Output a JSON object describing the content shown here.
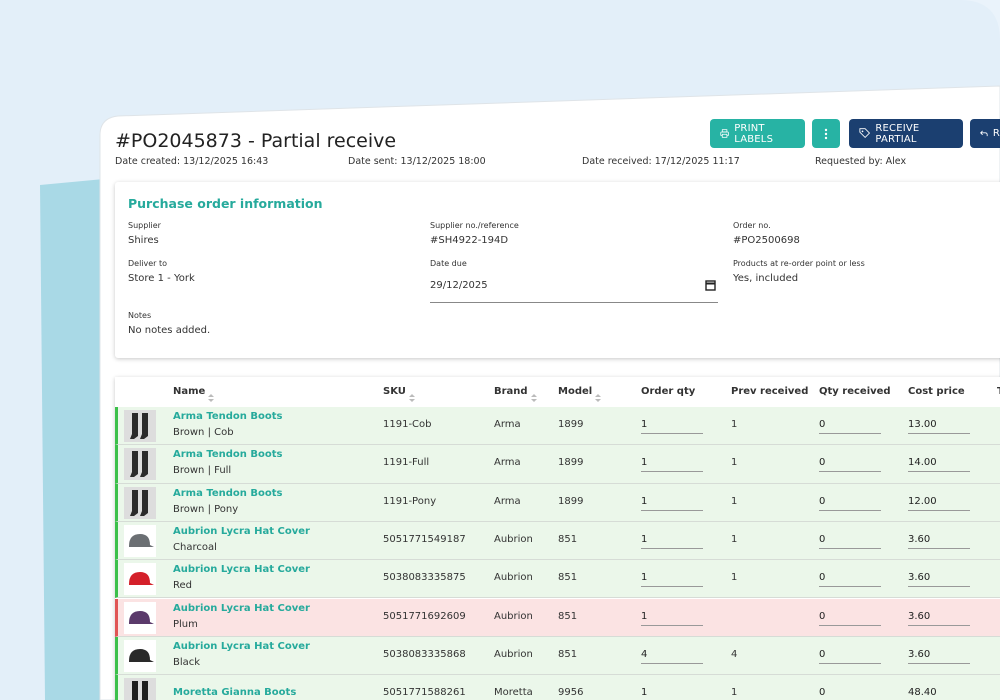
{
  "header": {
    "title": "#PO2045873 - Partial receive",
    "dates": [
      "Date created: 13/12/2025 16:43",
      "Date sent: 13/12/2025 18:00",
      "Date received: 17/12/2025 11:17",
      "Requested by: Alex"
    ]
  },
  "buttons": [
    "PRINT LABELS",
    "RECEIVE PARTIAL",
    "R"
  ],
  "info": {
    "title": "Purchase order information",
    "fields": [
      {
        "label": "Supplier",
        "value": "Shires"
      },
      {
        "label": "Supplier no./reference",
        "value": "#SH4922-194D"
      },
      {
        "label": "Order no.",
        "value": "#PO2500698"
      },
      {
        "label": "Deliver to",
        "value": "Store 1 - York"
      },
      {
        "label": "Date due",
        "value": "29/12/2025"
      },
      {
        "label": "Products at re-order point or less",
        "value": "Yes, included"
      },
      {
        "label": "Notes",
        "value": "No notes added."
      }
    ]
  },
  "table": {
    "columns": [
      {
        "label": "Name",
        "sortable": true
      },
      {
        "label": "SKU",
        "sortable": true
      },
      {
        "label": "Brand",
        "sortable": true
      },
      {
        "label": "Model",
        "sortable": true
      },
      {
        "label": "Order qty",
        "sortable": false
      },
      {
        "label": "Prev received",
        "sortable": false
      },
      {
        "label": "Qty received",
        "sortable": false
      },
      {
        "label": "Cost price",
        "sortable": false
      },
      {
        "label": "T",
        "sortable": false
      }
    ],
    "rows": [
      {
        "name": "Arma Tendon Boots",
        "variant": "Brown | Cob",
        "sku": "1191-Cob",
        "brand": "Arma",
        "model": "1899",
        "order_qty": 1,
        "prev_received": 1,
        "qty_received": 0,
        "cost_price": "13.00",
        "color": "#ebf7ea",
        "thumb": "boots",
        "thumb_color": "#2b2b2b"
      },
      {
        "name": "Arma Tendon Boots",
        "variant": "Brown | Full",
        "sku": "1191-Full",
        "brand": "Arma",
        "model": "1899",
        "order_qty": 1,
        "prev_received": 1,
        "qty_received": 0,
        "cost_price": "14.00",
        "color": "#ebf7ea",
        "thumb": "boots",
        "thumb_color": "#2b2b2b"
      },
      {
        "name": "Arma Tendon Boots",
        "variant": "Brown | Pony",
        "sku": "1191-Pony",
        "brand": "Arma",
        "model": "1899",
        "order_qty": 1,
        "prev_received": 1,
        "qty_received": 0,
        "cost_price": "12.00",
        "color": "#ebf7ea",
        "thumb": "boots",
        "thumb_color": "#2b2b2b"
      },
      {
        "name": "Aubrion Lycra Hat Cover",
        "variant": "Charcoal",
        "sku": "5051771549187",
        "brand": "Aubrion",
        "model": "851",
        "order_qty": 1,
        "prev_received": 1,
        "qty_received": 0,
        "cost_price": "3.60",
        "color": "#ebf7ea",
        "thumb": "hat",
        "thumb_color": "#6b6f73"
      },
      {
        "name": "Aubrion Lycra Hat Cover",
        "variant": "Red",
        "sku": "5038083335875",
        "brand": "Aubrion",
        "model": "851",
        "order_qty": 1,
        "prev_received": 1,
        "qty_received": 0,
        "cost_price": "3.60",
        "color": "#ebf7ea",
        "thumb": "hat",
        "thumb_color": "#d4202a"
      },
      {
        "name": "Aubrion Lycra Hat Cover",
        "variant": "Plum",
        "sku": "5051771692609",
        "brand": "Aubrion",
        "model": "851",
        "order_qty": 1,
        "prev_received": null,
        "qty_received": 0,
        "cost_price": "3.60",
        "color": "#fbe3e3",
        "thumb": "hat",
        "thumb_color": "#5b3a6b"
      },
      {
        "name": "Aubrion Lycra Hat Cover",
        "variant": "Black",
        "sku": "5038083335868",
        "brand": "Aubrion",
        "model": "851",
        "order_qty": 4,
        "prev_received": 4,
        "qty_received": 0,
        "cost_price": "3.60",
        "color": "#ebf7ea",
        "thumb": "hat",
        "thumb_color": "#2a2a2a"
      },
      {
        "name": "Moretta Gianna Boots",
        "variant": null,
        "sku": "5051771588261",
        "brand": "Moretta",
        "model": "9956",
        "order_qty": 1,
        "prev_received": 1,
        "qty_received": 0,
        "cost_price": "48.40",
        "color": "#ebf7ea",
        "thumb": "boots",
        "thumb_color": "#1e1e1e"
      }
    ]
  }
}
